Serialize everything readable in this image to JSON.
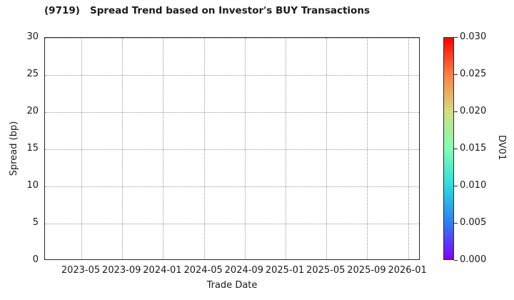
{
  "chart_data": {
    "type": "scatter",
    "title": "(9719)   Spread Trend based on Investor's BUY Transactions",
    "xlabel": "Trade Date",
    "ylabel": "Spread (bp)",
    "x_tick_labels": [
      "2023-05",
      "2023-09",
      "2024-01",
      "2024-05",
      "2024-09",
      "2025-01",
      "2025-05",
      "2025-09",
      "2026-01"
    ],
    "y_ticks": [
      0,
      5,
      10,
      15,
      20,
      25,
      30
    ],
    "ylim": [
      0,
      30
    ],
    "grid": true,
    "grid_style": "dotted",
    "points": [],
    "series": [],
    "colorbar": {
      "label": "DV01",
      "tick_labels": [
        "0.000",
        "0.005",
        "0.010",
        "0.015",
        "0.020",
        "0.025",
        "0.030"
      ],
      "range": [
        0.0,
        0.03
      ],
      "colormap": "rainbow",
      "gradient_stops_bottom_to_top": [
        "#8000ff",
        "#2a80f6",
        "#2adddd",
        "#80ffb4",
        "#d4dd80",
        "#ff8042",
        "#ff0000"
      ]
    },
    "colors": {
      "background": "#ffffff",
      "spine": "#2a2a2a",
      "grid": "#999999",
      "text": "#1a1a1a"
    }
  }
}
